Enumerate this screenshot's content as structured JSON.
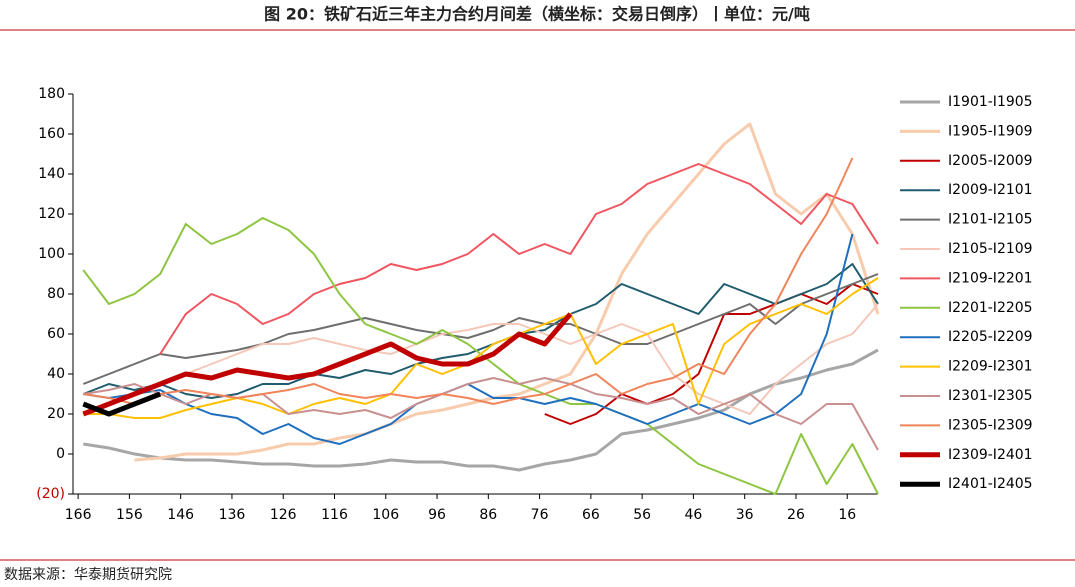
{
  "chart_data": {
    "type": "line",
    "title": "图 20：铁矿石近三年主力合约月间差（横坐标：交易日倒序）丨单位：元/吨",
    "source": "数据来源：华泰期货研究院",
    "x": [
      165,
      160,
      155,
      150,
      145,
      140,
      135,
      130,
      125,
      120,
      115,
      110,
      105,
      100,
      95,
      90,
      85,
      80,
      75,
      70,
      65,
      60,
      55,
      50,
      45,
      40,
      35,
      30,
      25,
      20,
      15,
      10
    ],
    "xlim": [
      167,
      10
    ],
    "xticks": [
      166,
      156,
      146,
      136,
      126,
      116,
      106,
      96,
      86,
      76,
      66,
      56,
      46,
      36,
      26,
      16
    ],
    "ylim": [
      -20,
      180
    ],
    "yticks": [
      {
        "value": -20,
        "label": "(20)"
      },
      0,
      20,
      40,
      60,
      80,
      100,
      120,
      140,
      160,
      180
    ],
    "series": [
      {
        "name": "I1901-I1905",
        "color": "#a6a6a6",
        "line_width": 3,
        "values": [
          5,
          3,
          0,
          -2,
          -3,
          -3,
          -4,
          -5,
          -5,
          -6,
          -6,
          -5,
          -3,
          -4,
          -4,
          -6,
          -6,
          -8,
          -5,
          -3,
          0,
          10,
          12,
          15,
          18,
          22,
          30,
          35,
          38,
          42,
          45,
          52
        ]
      },
      {
        "name": "I1905-I1909",
        "color": "#f8cbad",
        "line_width": 3,
        "values": [
          null,
          null,
          -3,
          -2,
          0,
          0,
          0,
          2,
          5,
          5,
          8,
          10,
          15,
          20,
          22,
          25,
          28,
          30,
          35,
          40,
          60,
          90,
          110,
          125,
          140,
          155,
          165,
          130,
          120,
          130,
          110,
          70
        ]
      },
      {
        "name": "I2005-I2009",
        "color": "#c00000",
        "line_width": 2,
        "values": [
          null,
          null,
          null,
          null,
          null,
          null,
          null,
          null,
          null,
          null,
          null,
          null,
          null,
          null,
          null,
          null,
          null,
          null,
          20,
          15,
          20,
          30,
          25,
          30,
          40,
          70,
          70,
          75,
          80,
          75,
          85,
          80
        ]
      },
      {
        "name": "I2009-I2101",
        "color": "#1f5c6e",
        "line_width": 2,
        "values": [
          30,
          35,
          32,
          35,
          30,
          28,
          30,
          35,
          35,
          40,
          38,
          42,
          40,
          45,
          48,
          50,
          55,
          60,
          62,
          70,
          75,
          85,
          80,
          75,
          70,
          85,
          80,
          75,
          80,
          85,
          95,
          75
        ]
      },
      {
        "name": "I2101-I2105",
        "color": "#6e6e6e",
        "line_width": 2,
        "values": [
          35,
          40,
          45,
          50,
          48,
          50,
          52,
          55,
          60,
          62,
          65,
          68,
          65,
          62,
          60,
          58,
          62,
          68,
          65,
          65,
          60,
          55,
          55,
          60,
          65,
          70,
          75,
          65,
          75,
          80,
          85,
          90
        ]
      },
      {
        "name": "I2105-I2109",
        "color": "#f4c7b8",
        "line_width": 2,
        "values": [
          20,
          25,
          30,
          35,
          40,
          45,
          50,
          55,
          55,
          58,
          55,
          52,
          50,
          55,
          60,
          62,
          65,
          65,
          60,
          55,
          60,
          65,
          60,
          40,
          30,
          25,
          20,
          35,
          45,
          55,
          60,
          75
        ]
      },
      {
        "name": "I2109-I2201",
        "color": "#f0555f",
        "line_width": 2,
        "values": [
          null,
          null,
          null,
          50,
          70,
          80,
          75,
          65,
          70,
          80,
          85,
          88,
          95,
          92,
          95,
          100,
          110,
          100,
          105,
          100,
          120,
          125,
          135,
          140,
          145,
          140,
          135,
          125,
          115,
          130,
          125,
          105
        ]
      },
      {
        "name": "I2201-I2205",
        "color": "#8dc540",
        "line_width": 2,
        "values": [
          92,
          75,
          80,
          90,
          115,
          105,
          110,
          118,
          112,
          100,
          80,
          65,
          60,
          55,
          62,
          55,
          45,
          35,
          30,
          25,
          25,
          20,
          15,
          5,
          -5,
          -10,
          -15,
          -20,
          10,
          -15,
          5,
          -20
        ]
      },
      {
        "name": "I2205-I2209",
        "color": "#1f6fbf",
        "line_width": 2,
        "values": [
          30,
          28,
          30,
          32,
          25,
          20,
          18,
          10,
          15,
          8,
          5,
          10,
          15,
          25,
          30,
          35,
          28,
          28,
          25,
          28,
          25,
          20,
          15,
          20,
          25,
          20,
          15,
          20,
          30,
          60,
          110,
          null
        ]
      },
      {
        "name": "I2209-I2301",
        "color": "#ffc000",
        "line_width": 2,
        "values": [
          20,
          20,
          18,
          18,
          22,
          25,
          28,
          25,
          20,
          25,
          28,
          25,
          30,
          45,
          40,
          45,
          55,
          60,
          65,
          70,
          45,
          55,
          60,
          65,
          25,
          55,
          65,
          70,
          75,
          70,
          80,
          88
        ]
      },
      {
        "name": "I2301-I2305",
        "color": "#c98f8f",
        "line_width": 2,
        "values": [
          30,
          32,
          35,
          30,
          25,
          30,
          28,
          30,
          20,
          22,
          20,
          22,
          18,
          25,
          30,
          35,
          38,
          35,
          38,
          35,
          30,
          28,
          25,
          28,
          20,
          25,
          30,
          20,
          15,
          25,
          25,
          2
        ]
      },
      {
        "name": "I2305-I2309",
        "color": "#f0845a",
        "line_width": 2,
        "values": [
          30,
          28,
          25,
          30,
          32,
          30,
          28,
          30,
          32,
          35,
          30,
          28,
          30,
          28,
          30,
          28,
          25,
          28,
          30,
          35,
          40,
          30,
          35,
          38,
          45,
          40,
          60,
          75,
          100,
          120,
          148,
          null
        ]
      },
      {
        "name": "I2309-I2401",
        "color": "#c00000",
        "line_width": 5,
        "values": [
          20,
          25,
          30,
          35,
          40,
          38,
          42,
          40,
          38,
          40,
          45,
          50,
          55,
          48,
          45,
          45,
          50,
          60,
          55,
          70,
          null,
          null,
          null,
          null,
          null,
          null,
          null,
          null,
          null,
          null,
          null,
          null
        ]
      },
      {
        "name": "I2401-I2405",
        "color": "#000000",
        "line_width": 5,
        "values": [
          25,
          20,
          25,
          30,
          null,
          null,
          null,
          null,
          null,
          null,
          null,
          null,
          null,
          null,
          null,
          null,
          null,
          null,
          null,
          null,
          null,
          null,
          null,
          null,
          null,
          null,
          null,
          null,
          null,
          null,
          null,
          null
        ]
      }
    ]
  }
}
